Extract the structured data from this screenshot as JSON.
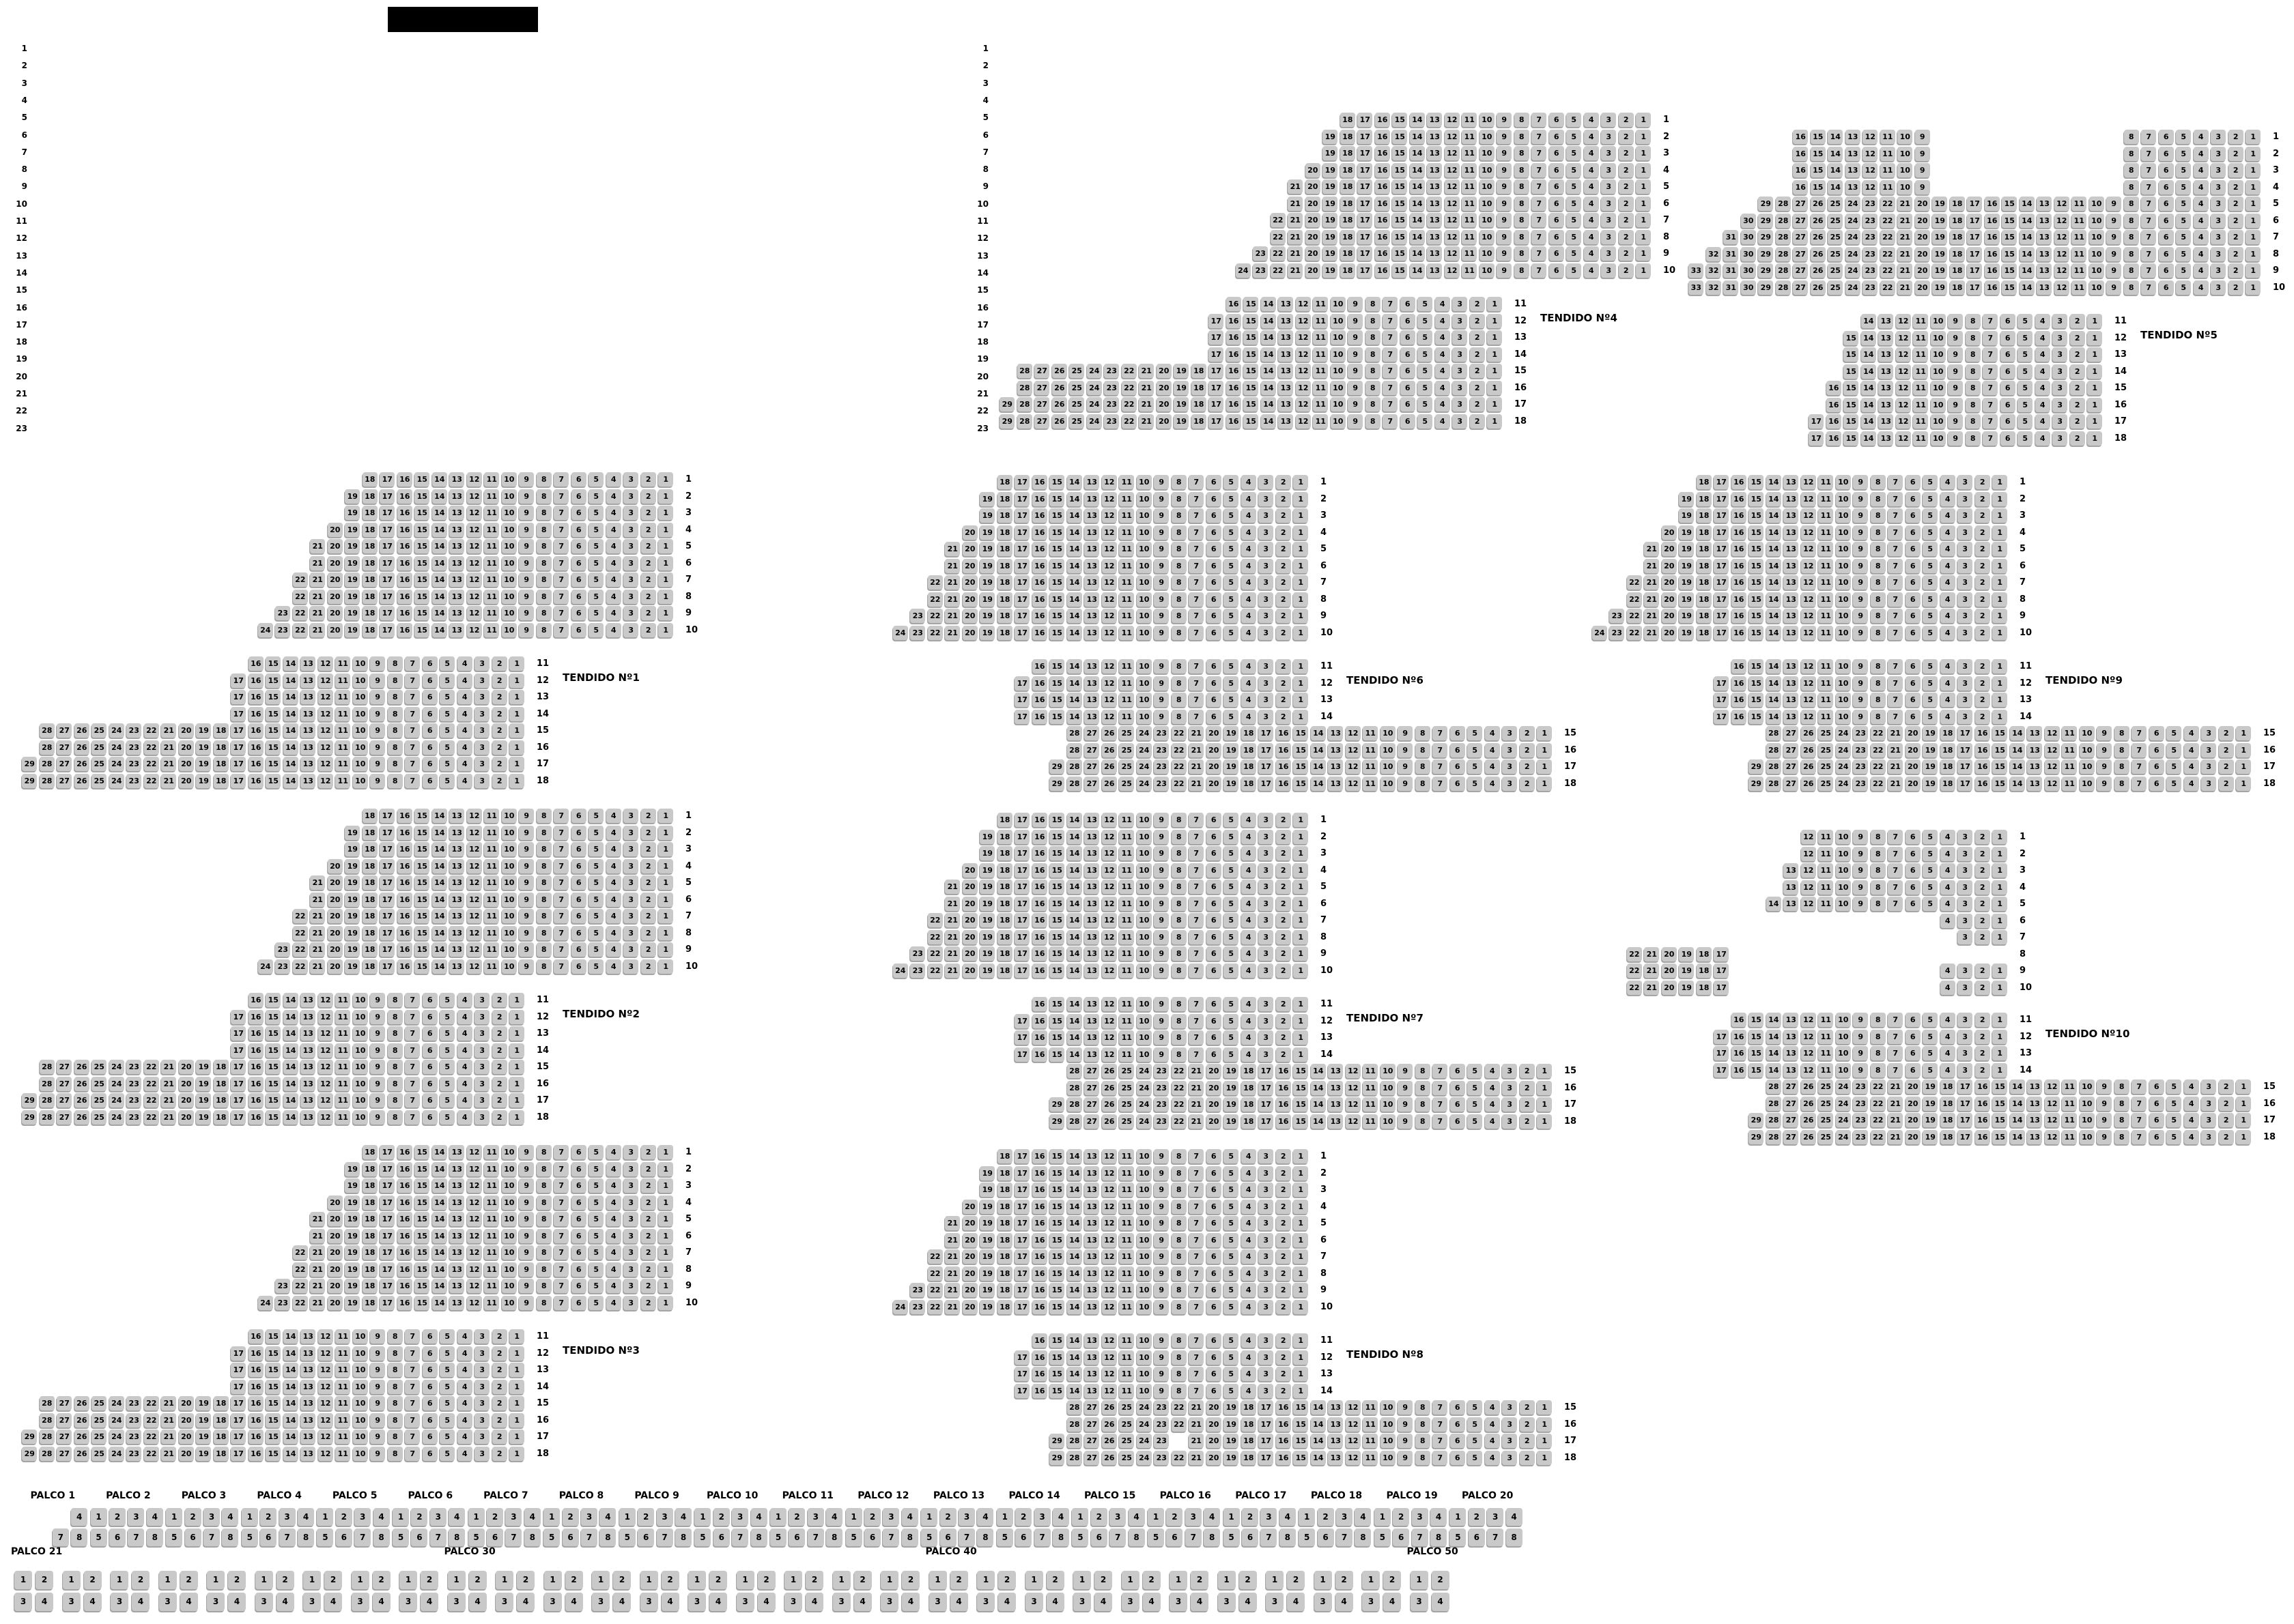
{
  "colors": {
    "background": "#ffffff",
    "seat_bg": "#c9c9c9",
    "seat_shadow": "#a4a4a4",
    "seat_text": "#000000",
    "label_text": "#000000",
    "banner": "#000000"
  },
  "row_index_values": [
    "1",
    "2",
    "3",
    "4",
    "5",
    "6",
    "7",
    "8",
    "9",
    "10",
    "11",
    "12",
    "13",
    "14",
    "15",
    "16",
    "17",
    "18",
    "19",
    "20",
    "21",
    "22",
    "23"
  ],
  "row_labels_upper": [
    "1",
    "2",
    "3",
    "4",
    "5",
    "6",
    "7",
    "8",
    "9",
    "10"
  ],
  "row_labels_lower": [
    "11",
    "12",
    "13",
    "14",
    "15",
    "16",
    "17",
    "18"
  ],
  "row_patterns": {
    "upper_std": [
      [
        [
          18,
          1,
          0
        ]
      ],
      [
        [
          19,
          1,
          0
        ]
      ],
      [
        [
          19,
          1,
          0
        ]
      ],
      [
        [
          20,
          1,
          0
        ]
      ],
      [
        [
          21,
          1,
          0
        ]
      ],
      [
        [
          21,
          1,
          0
        ]
      ],
      [
        [
          22,
          1,
          0
        ]
      ],
      [
        [
          22,
          1,
          0
        ]
      ],
      [
        [
          23,
          1,
          0
        ]
      ],
      [
        [
          24,
          1,
          0
        ]
      ]
    ],
    "upper_t5": [
      [
        [
          16,
          9,
          11
        ],
        [
          8,
          1,
          0
        ]
      ],
      [
        [
          16,
          9,
          11
        ],
        [
          8,
          1,
          0
        ]
      ],
      [
        [
          16,
          9,
          11
        ],
        [
          8,
          1,
          0
        ]
      ],
      [
        [
          16,
          9,
          11
        ],
        [
          8,
          1,
          0
        ]
      ],
      [
        [
          29,
          1,
          0
        ]
      ],
      [
        [
          30,
          1,
          0
        ]
      ],
      [
        [
          31,
          1,
          0
        ]
      ],
      [
        [
          32,
          1,
          0
        ]
      ],
      [
        [
          33,
          1,
          0
        ]
      ],
      [
        [
          33,
          1,
          0
        ]
      ]
    ],
    "upper_t10": [
      [
        [
          12,
          1,
          0
        ]
      ],
      [
        [
          12,
          1,
          0
        ]
      ],
      [
        [
          13,
          1,
          0
        ]
      ],
      [
        [
          13,
          1,
          0
        ]
      ],
      [
        [
          14,
          1,
          0
        ]
      ],
      [
        [
          4,
          1,
          0
        ]
      ],
      [
        [
          3,
          1,
          0
        ]
      ],
      [
        [
          22,
          17,
          16
        ]
      ],
      [
        [
          22,
          17,
          12
        ],
        [
          4,
          1,
          0
        ]
      ],
      [
        [
          22,
          17,
          12
        ],
        [
          4,
          1,
          0
        ]
      ]
    ],
    "lower_std": [
      [
        [
          16,
          1,
          0
        ]
      ],
      [
        [
          17,
          1,
          0
        ]
      ],
      [
        [
          17,
          1,
          0
        ]
      ],
      [
        [
          17,
          1,
          0
        ]
      ],
      [
        [
          28,
          1,
          0
        ]
      ],
      [
        [
          28,
          1,
          0
        ]
      ],
      [
        [
          29,
          1,
          0
        ]
      ],
      [
        [
          29,
          1,
          0
        ]
      ]
    ],
    "lower_t5": [
      [
        [
          14,
          1,
          0
        ]
      ],
      [
        [
          15,
          1,
          0
        ]
      ],
      [
        [
          15,
          1,
          0
        ]
      ],
      [
        [
          15,
          1,
          0
        ]
      ],
      [
        [
          16,
          1,
          0
        ]
      ],
      [
        [
          16,
          1,
          0
        ]
      ],
      [
        [
          17,
          1,
          0
        ]
      ],
      [
        [
          17,
          1,
          0
        ]
      ]
    ],
    "lower_std_gap": [
      [
        [
          16,
          1,
          0
        ]
      ],
      [
        [
          17,
          1,
          0
        ]
      ],
      [
        [
          17,
          1,
          0
        ]
      ],
      [
        [
          17,
          1,
          0
        ]
      ],
      [
        [
          28,
          1,
          0
        ]
      ],
      [
        [
          28,
          1,
          0
        ]
      ],
      [
        [
          29,
          23,
          1
        ],
        [
          21,
          1,
          0
        ]
      ],
      [
        [
          29,
          1,
          0
        ]
      ]
    ]
  },
  "tendidos": [
    {
      "id": "t1",
      "label": "TENDIDO Nº1",
      "upper": "upper_std",
      "lower": "lower_std",
      "split": false
    },
    {
      "id": "t2",
      "label": "TENDIDO Nº2",
      "upper": "upper_std",
      "lower": "lower_std",
      "split": false
    },
    {
      "id": "t3",
      "label": "TENDIDO Nº3",
      "upper": "upper_std",
      "lower": "lower_std",
      "split": false
    },
    {
      "id": "t4",
      "label": "TENDIDO Nº4",
      "upper": "upper_std",
      "lower": "lower_std",
      "split": false
    },
    {
      "id": "t5",
      "label": "TENDIDO Nº5",
      "upper": "upper_t5",
      "lower": "lower_t5",
      "split": false
    },
    {
      "id": "t6",
      "label": "TENDIDO Nº6",
      "upper": "upper_std",
      "lower": "lower_std",
      "split": true
    },
    {
      "id": "t7",
      "label": "TENDIDO Nº7",
      "upper": "upper_std",
      "lower": "lower_std",
      "split": true
    },
    {
      "id": "t8",
      "label": "TENDIDO Nº8",
      "upper": "upper_std",
      "lower": "lower_std_gap",
      "split": true
    },
    {
      "id": "t9",
      "label": "TENDIDO Nº9",
      "upper": "upper_std",
      "lower": "lower_std",
      "split": true
    },
    {
      "id": "t10",
      "label": "TENDIDO Nº10",
      "upper": "upper_t10",
      "lower": "lower_std",
      "split": true
    }
  ],
  "palco_top": {
    "seat_rows": [
      [
        1,
        2,
        3,
        4
      ],
      [
        5,
        6,
        7,
        8
      ]
    ],
    "sections": [
      {
        "label": "PALCO 1",
        "missing": [
          1,
          2,
          3,
          5,
          6
        ]
      },
      {
        "label": "PALCO 2",
        "missing": []
      },
      {
        "label": "PALCO 3",
        "missing": []
      },
      {
        "label": "PALCO 4",
        "missing": []
      },
      {
        "label": "PALCO 5",
        "missing": []
      },
      {
        "label": "PALCO 6",
        "missing": []
      },
      {
        "label": "PALCO 7",
        "missing": []
      },
      {
        "label": "PALCO 8",
        "missing": []
      },
      {
        "label": "PALCO 9",
        "missing": []
      },
      {
        "label": "PALCO 10",
        "missing": []
      },
      {
        "label": "PALCO 11",
        "missing": []
      },
      {
        "label": "PALCO 12",
        "missing": []
      },
      {
        "label": "PALCO 13",
        "missing": []
      },
      {
        "label": "PALCO 14",
        "missing": []
      },
      {
        "label": "PALCO 15",
        "missing": []
      },
      {
        "label": "PALCO 16",
        "missing": []
      },
      {
        "label": "PALCO 17",
        "missing": []
      },
      {
        "label": "PALCO 18",
        "missing": []
      },
      {
        "label": "PALCO 19",
        "missing": []
      },
      {
        "label": "PALCO 20",
        "missing": []
      }
    ]
  },
  "palco_bottom": {
    "group_count": 30,
    "seat_rows": [
      [
        1,
        2
      ],
      [
        3,
        4
      ]
    ],
    "labels": [
      {
        "text": "PALCO 21",
        "group": 1
      },
      {
        "text": "PALCO 30",
        "group": 10
      },
      {
        "text": "PALCO 40",
        "group": 20
      },
      {
        "text": "PALCO 50",
        "group": 30
      }
    ]
  }
}
